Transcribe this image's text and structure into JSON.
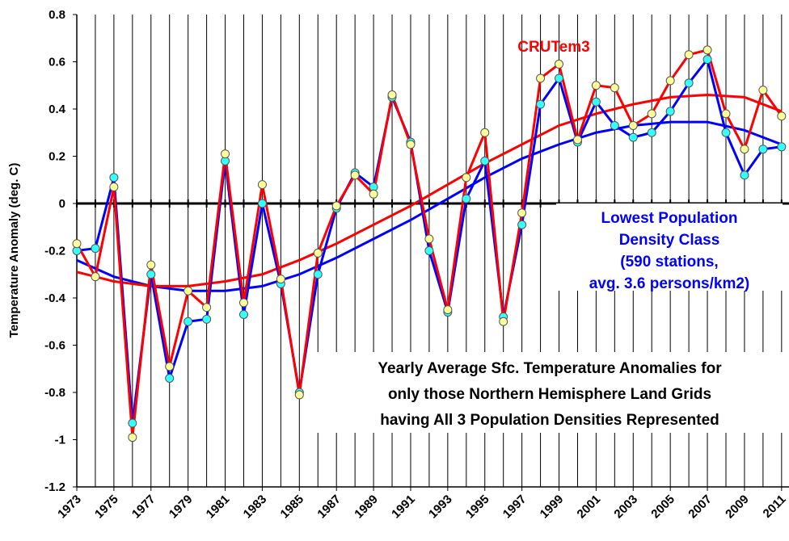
{
  "chart_data": {
    "type": "line",
    "y_label": "Temperature Anomaly (deg. C)",
    "x": [
      1973,
      1974,
      1975,
      1976,
      1977,
      1978,
      1979,
      1980,
      1981,
      1982,
      1983,
      1984,
      1985,
      1986,
      1987,
      1988,
      1989,
      1990,
      1991,
      1992,
      1993,
      1994,
      1995,
      1996,
      1997,
      1998,
      1999,
      2000,
      2001,
      2002,
      2003,
      2004,
      2005,
      2006,
      2007,
      2008,
      2009,
      2010,
      2011
    ],
    "xlim": [
      1973,
      2011.4
    ],
    "xticks": [
      1973,
      1975,
      1977,
      1979,
      1981,
      1983,
      1985,
      1987,
      1989,
      1991,
      1993,
      1995,
      1997,
      1999,
      2001,
      2003,
      2005,
      2007,
      2009,
      2011
    ],
    "ylim": [
      -1.2,
      0.8
    ],
    "yticks": [
      0.8,
      0.6,
      0.4,
      0.2,
      0,
      -0.2,
      -0.4,
      -0.6,
      -0.8,
      -1,
      -1.2
    ],
    "grid": true,
    "series": [
      {
        "name": "Lowest Population Density Class",
        "color": "#0000ff",
        "marker_color": "#33ffff",
        "values": [
          -0.2,
          -0.19,
          0.11,
          -0.93,
          -0.3,
          -0.74,
          -0.5,
          -0.49,
          0.18,
          -0.47,
          0.0,
          -0.34,
          -0.8,
          -0.3,
          -0.02,
          0.13,
          0.07,
          0.45,
          0.26,
          -0.2,
          -0.46,
          0.02,
          0.18,
          -0.48,
          -0.09,
          0.42,
          0.53,
          0.26,
          0.43,
          0.33,
          0.28,
          0.3,
          0.39,
          0.51,
          0.61,
          0.3,
          0.12,
          0.23,
          0.24
        ]
      },
      {
        "name": "CRUTem3",
        "color": "#ff0000",
        "marker_color": "#ffff99",
        "values": [
          -0.17,
          -0.31,
          0.07,
          -0.99,
          -0.26,
          -0.69,
          -0.37,
          -0.44,
          0.21,
          -0.42,
          0.08,
          -0.32,
          -0.81,
          -0.21,
          -0.01,
          0.12,
          0.04,
          0.46,
          0.25,
          -0.15,
          -0.45,
          0.11,
          0.3,
          -0.5,
          -0.04,
          0.53,
          0.59,
          0.27,
          0.5,
          0.49,
          0.33,
          0.38,
          0.52,
          0.63,
          0.65,
          0.38,
          0.23,
          0.48,
          0.37
        ]
      }
    ],
    "trends": [
      {
        "color": "#0000ff",
        "x": [
          1973,
          1975,
          1977,
          1979,
          1981,
          1983,
          1985,
          1987,
          1989,
          1991,
          1993,
          1995,
          1997,
          1999,
          2001,
          2003,
          2005,
          2007,
          2009,
          2011
        ],
        "values": [
          -0.24,
          -0.31,
          -0.35,
          -0.37,
          -0.37,
          -0.35,
          -0.3,
          -0.23,
          -0.15,
          -0.07,
          0.02,
          0.11,
          0.19,
          0.25,
          0.3,
          0.33,
          0.345,
          0.345,
          0.31,
          0.25
        ]
      },
      {
        "color": "#ff0000",
        "x": [
          1973,
          1975,
          1977,
          1979,
          1981,
          1983,
          1985,
          1987,
          1989,
          1991,
          1993,
          1995,
          1997,
          1999,
          2001,
          2003,
          2005,
          2007,
          2009,
          2011
        ],
        "values": [
          -0.29,
          -0.33,
          -0.35,
          -0.35,
          -0.33,
          -0.3,
          -0.24,
          -0.17,
          -0.09,
          -0.01,
          0.08,
          0.17,
          0.25,
          0.33,
          0.38,
          0.42,
          0.45,
          0.46,
          0.45,
          0.39
        ]
      }
    ],
    "annotations": {
      "red_label": "CRUTem3",
      "blue_label": [
        "Lowest Population",
        "Density Class",
        "(590 stations,",
        "avg. 3.6 persons/km2)"
      ],
      "description": [
        "Yearly Average Sfc. Temperature Anomalies for",
        "only those Northern Hemisphere Land Grids",
        "having All 3 Population Densities Represented"
      ]
    }
  }
}
